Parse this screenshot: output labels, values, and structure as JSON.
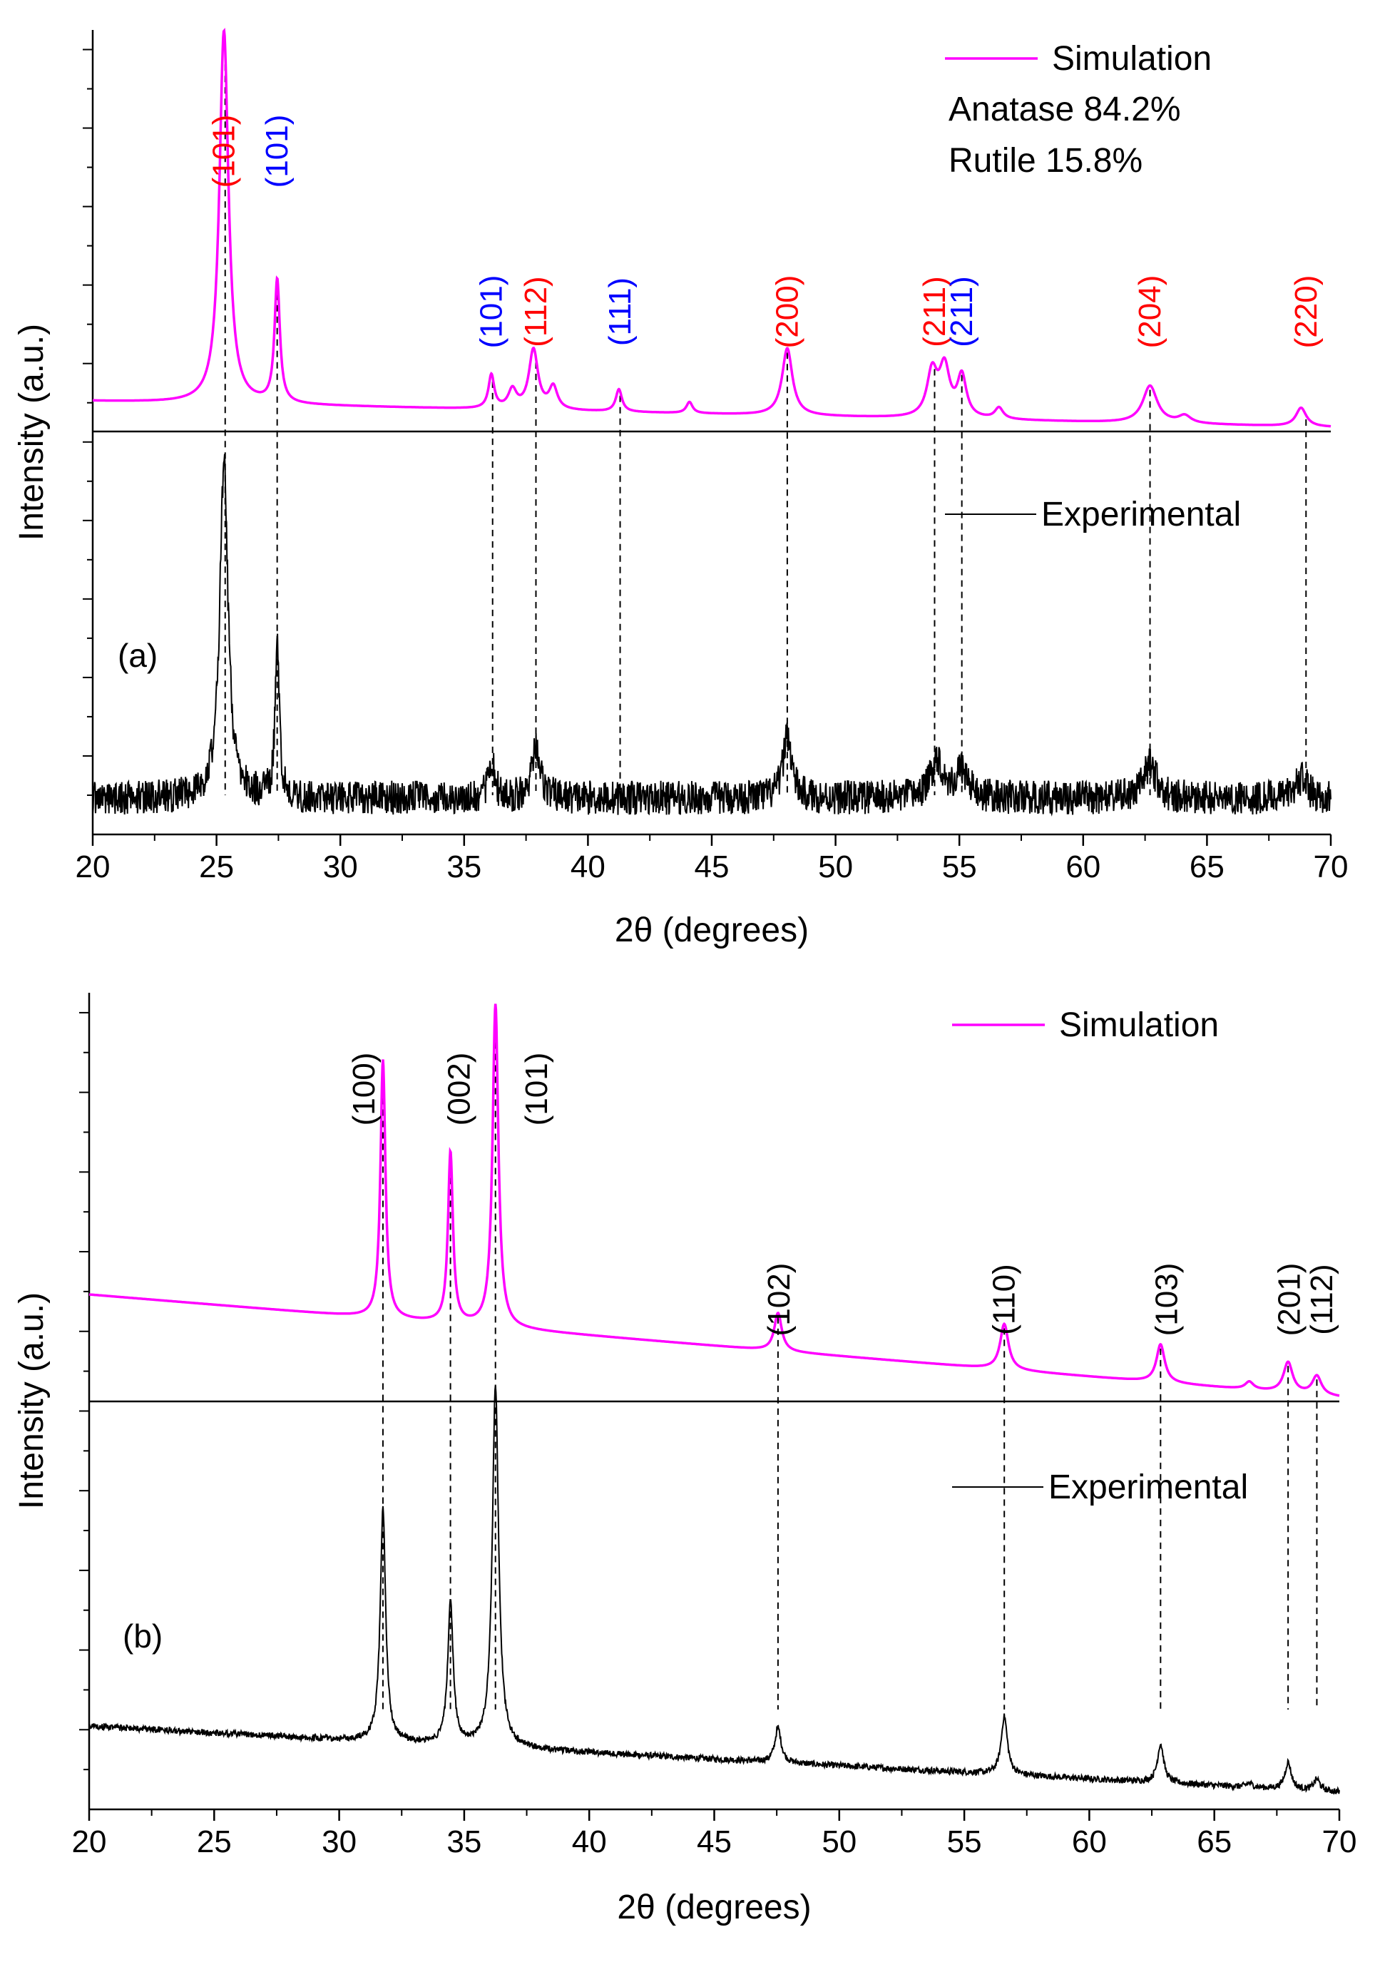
{
  "figure": {
    "description_free": true
  },
  "chart_data": [
    {
      "panel": "(a)",
      "type": "line",
      "title": "",
      "xlabel": "2θ (degrees)",
      "ylabel": "Intensity (a.u.)",
      "xlim": [
        20,
        70
      ],
      "x_ticks": [
        20,
        25,
        30,
        35,
        40,
        45,
        50,
        55,
        60,
        65,
        70
      ],
      "x_tick_labels": [
        "20",
        "25",
        "30",
        "35",
        "40",
        "45",
        "50",
        "55",
        "60",
        "65",
        "70"
      ],
      "grid": false,
      "legend": {
        "placement": "top-right",
        "simulation_label": "Simulation",
        "experimental_label": "Experimental",
        "phase_lines": [
          {
            "text": "Anatase 84.2%",
            "color": "#ff0000"
          },
          {
            "text": "Rutile 15.8%",
            "color": "#0000ff"
          }
        ]
      },
      "series": [
        {
          "name": "Simulation",
          "color": "#ff00ff",
          "baseline_start": 0.07,
          "baseline_end": 0.0,
          "peaks": [
            {
              "x": 25.3,
              "height": 1.0,
              "width": 0.22
            },
            {
              "x": 27.45,
              "height": 0.33,
              "width": 0.13
            },
            {
              "x": 36.1,
              "height": 0.09,
              "width": 0.14
            },
            {
              "x": 36.95,
              "height": 0.05,
              "width": 0.2
            },
            {
              "x": 37.8,
              "height": 0.16,
              "width": 0.22
            },
            {
              "x": 38.6,
              "height": 0.06,
              "width": 0.2
            },
            {
              "x": 41.25,
              "height": 0.06,
              "width": 0.15
            },
            {
              "x": 44.1,
              "height": 0.03,
              "width": 0.15
            },
            {
              "x": 48.05,
              "height": 0.18,
              "width": 0.25
            },
            {
              "x": 53.9,
              "height": 0.12,
              "width": 0.25
            },
            {
              "x": 54.4,
              "height": 0.13,
              "width": 0.25
            },
            {
              "x": 55.1,
              "height": 0.11,
              "width": 0.22
            },
            {
              "x": 56.6,
              "height": 0.03,
              "width": 0.2
            },
            {
              "x": 62.7,
              "height": 0.1,
              "width": 0.35
            },
            {
              "x": 64.1,
              "height": 0.02,
              "width": 0.3
            },
            {
              "x": 68.8,
              "height": 0.05,
              "width": 0.25
            }
          ]
        },
        {
          "name": "Experimental",
          "color": "#000000",
          "baseline_start": 0.08,
          "baseline_end": 0.08,
          "noise": 0.045,
          "peaks": [
            {
              "x": 25.3,
              "height": 0.88,
              "width": 0.2
            },
            {
              "x": 27.45,
              "height": 0.4,
              "width": 0.1
            },
            {
              "x": 36.1,
              "height": 0.1,
              "width": 0.15
            },
            {
              "x": 37.9,
              "height": 0.14,
              "width": 0.2
            },
            {
              "x": 48.05,
              "height": 0.17,
              "width": 0.2
            },
            {
              "x": 54.1,
              "height": 0.1,
              "width": 0.3
            },
            {
              "x": 55.1,
              "height": 0.07,
              "width": 0.3
            },
            {
              "x": 62.7,
              "height": 0.09,
              "width": 0.3
            },
            {
              "x": 68.8,
              "height": 0.05,
              "width": 0.3
            }
          ]
        }
      ],
      "peak_labels": [
        {
          "text": "(101)",
          "x": 25.3,
          "color": "#ff0000",
          "level": "high"
        },
        {
          "text": "(101)",
          "x": 27.45,
          "color": "#0000ff",
          "level": "high"
        },
        {
          "text": "(101)",
          "x": 36.1,
          "color": "#0000ff",
          "level": "low"
        },
        {
          "text": "(112)",
          "x": 37.9,
          "color": "#ff0000",
          "level": "low"
        },
        {
          "text": "(111)",
          "x": 41.3,
          "color": "#0000ff",
          "level": "low"
        },
        {
          "text": "(200)",
          "x": 48.05,
          "color": "#ff0000",
          "level": "low"
        },
        {
          "text": "(211)",
          "x": 54.0,
          "color": "#ff0000",
          "level": "low"
        },
        {
          "text": "(211)",
          "x": 55.1,
          "color": "#0000ff",
          "level": "low"
        },
        {
          "text": "(204)",
          "x": 62.7,
          "color": "#ff0000",
          "level": "low"
        },
        {
          "text": "(220)",
          "x": 69.0,
          "color": "#ff0000",
          "level": "low"
        }
      ],
      "reference_lines_x": [
        25.35,
        27.45,
        36.15,
        37.9,
        41.3,
        48.05,
        54.0,
        55.1,
        62.7,
        69.0
      ]
    },
    {
      "panel": "(b)",
      "type": "line",
      "title": "",
      "xlabel": "2θ (degrees)",
      "ylabel": "Intensity (a.u.)",
      "xlim": [
        20,
        70
      ],
      "x_ticks": [
        20,
        25,
        30,
        35,
        40,
        45,
        50,
        55,
        60,
        65,
        70
      ],
      "x_tick_labels": [
        "20",
        "25",
        "30",
        "35",
        "40",
        "45",
        "50",
        "55",
        "60",
        "65",
        "70"
      ],
      "grid": false,
      "legend": {
        "placement": "top-right",
        "simulation_label": "Simulation",
        "experimental_label": "Experimental",
        "phase_lines": []
      },
      "series": [
        {
          "name": "Simulation",
          "color": "#ff00ff",
          "baseline_start": 0.27,
          "baseline_end": 0.0,
          "peaks": [
            {
              "x": 31.75,
              "height": 0.68,
              "width": 0.12
            },
            {
              "x": 34.45,
              "height": 0.45,
              "width": 0.12
            },
            {
              "x": 36.25,
              "height": 0.85,
              "width": 0.14
            },
            {
              "x": 47.55,
              "height": 0.1,
              "width": 0.18
            },
            {
              "x": 56.6,
              "height": 0.12,
              "width": 0.2
            },
            {
              "x": 62.85,
              "height": 0.1,
              "width": 0.2
            },
            {
              "x": 66.4,
              "height": 0.02,
              "width": 0.2
            },
            {
              "x": 67.95,
              "height": 0.08,
              "width": 0.22
            },
            {
              "x": 69.1,
              "height": 0.05,
              "width": 0.22
            }
          ]
        },
        {
          "name": "Experimental",
          "color": "#000000",
          "baseline_start": 0.2,
          "baseline_end": 0.03,
          "noise": 0.008,
          "peaks": [
            {
              "x": 31.75,
              "height": 0.6,
              "width": 0.13
            },
            {
              "x": 34.45,
              "height": 0.37,
              "width": 0.13
            },
            {
              "x": 36.25,
              "height": 0.94,
              "width": 0.15
            },
            {
              "x": 47.55,
              "height": 0.09,
              "width": 0.15
            },
            {
              "x": 56.6,
              "height": 0.15,
              "width": 0.15
            },
            {
              "x": 62.85,
              "height": 0.1,
              "width": 0.15
            },
            {
              "x": 66.4,
              "height": 0.01,
              "width": 0.15
            },
            {
              "x": 67.95,
              "height": 0.07,
              "width": 0.15
            },
            {
              "x": 69.1,
              "height": 0.03,
              "width": 0.15
            }
          ]
        }
      ],
      "peak_labels": [
        {
          "text": "(100)",
          "x": 31.0,
          "color": "#000000",
          "level": "high"
        },
        {
          "text": "(002)",
          "x": 34.8,
          "color": "#000000",
          "level": "high"
        },
        {
          "text": "(101)",
          "x": 37.9,
          "color": "#000000",
          "level": "high"
        },
        {
          "text": "(102)",
          "x": 47.6,
          "color": "#000000",
          "level": "low"
        },
        {
          "text": "(110)",
          "x": 56.6,
          "color": "#000000",
          "level": "low"
        },
        {
          "text": "(103)",
          "x": 63.1,
          "color": "#000000",
          "level": "low"
        },
        {
          "text": "(201)",
          "x": 68.0,
          "color": "#000000",
          "level": "low"
        },
        {
          "text": "(112)",
          "x": 69.3,
          "color": "#000000",
          "level": "low"
        }
      ],
      "reference_lines_x": [
        31.75,
        34.45,
        36.25,
        47.55,
        56.6,
        62.85,
        67.95,
        69.1
      ]
    }
  ]
}
